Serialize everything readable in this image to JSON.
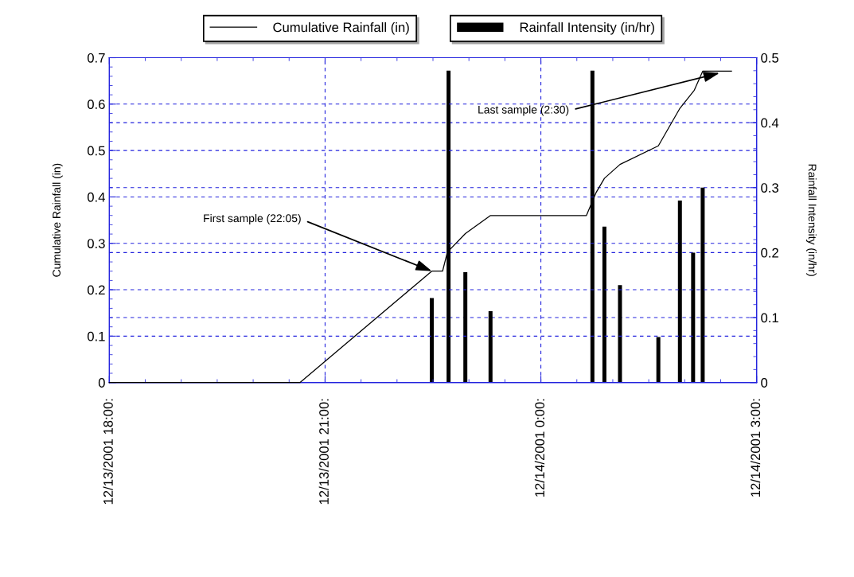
{
  "chart_data": {
    "type": "line",
    "ylabel": "Cumulative Rainfall (in)",
    "y2label": "Rainfall Intensity (in/hr)",
    "xlim": [
      "2001-12-13T18:00",
      "2001-12-14T03:00"
    ],
    "xticks": [
      {
        "value": "2001-12-13T18:00",
        "label": "12/13/2001 18:00:"
      },
      {
        "value": "2001-12-13T21:00",
        "label": "12/13/2001 21:00:"
      },
      {
        "value": "2001-12-14T00:00",
        "label": "12/14/2001 0:00:"
      },
      {
        "value": "2001-12-14T03:00",
        "label": "12/14/2001 3:00:"
      }
    ],
    "ylim": [
      0,
      0.7
    ],
    "yticks": [
      0,
      0.1,
      0.2,
      0.3,
      0.4,
      0.5,
      0.6,
      0.7
    ],
    "y2lim": [
      0,
      0.5
    ],
    "y2ticks": [
      0,
      0.1,
      0.2,
      0.3,
      0.4,
      0.5
    ],
    "grid": true,
    "legend": "top",
    "marker": "none",
    "line_style": "solid",
    "series": [
      {
        "name": "Cumulative Rainfall (in)",
        "color": "#000000",
        "x": [
          "2001-12-13T18:00",
          "2001-12-13T20:39",
          "2001-12-13T22:29",
          "2001-12-13T22:38",
          "2001-12-13T22:42",
          "2001-12-13T22:57",
          "2001-12-13T23:18",
          "2001-12-14T00:38",
          "2001-12-14T00:46",
          "2001-12-14T00:53",
          "2001-12-14T01:06",
          "2001-12-14T01:38",
          "2001-12-14T01:56",
          "2001-12-14T02:08",
          "2001-12-14T02:15",
          "2001-12-14T02:39"
        ],
        "values": [
          0,
          0,
          0.24,
          0.24,
          0.281,
          0.321,
          0.36,
          0.36,
          0.409,
          0.44,
          0.47,
          0.51,
          0.591,
          0.63,
          0.671,
          0.671
        ]
      },
      {
        "name": "Rainfall Intensity (in/hr)",
        "type": "bar",
        "axis": "y2",
        "color": "#000000",
        "x": [
          "2001-12-13T22:29",
          "2001-12-13T22:43",
          "2001-12-13T22:57",
          "2001-12-13T23:18",
          "2001-12-14T00:43",
          "2001-12-14T00:53",
          "2001-12-14T01:06",
          "2001-12-14T01:38",
          "2001-12-14T01:56",
          "2001-12-14T02:07",
          "2001-12-14T02:15"
        ],
        "values": [
          0.13,
          0.48,
          0.17,
          0.11,
          0.48,
          0.24,
          0.15,
          0.07,
          0.28,
          0.2,
          0.3
        ]
      }
    ],
    "annotations": [
      {
        "text": "First sample (22:05)",
        "x": "2001-12-13T22:29",
        "y": 0.24
      },
      {
        "text": "Last sample (2:30)",
        "x": "2001-12-14T02:29",
        "y": 0.667
      }
    ]
  }
}
